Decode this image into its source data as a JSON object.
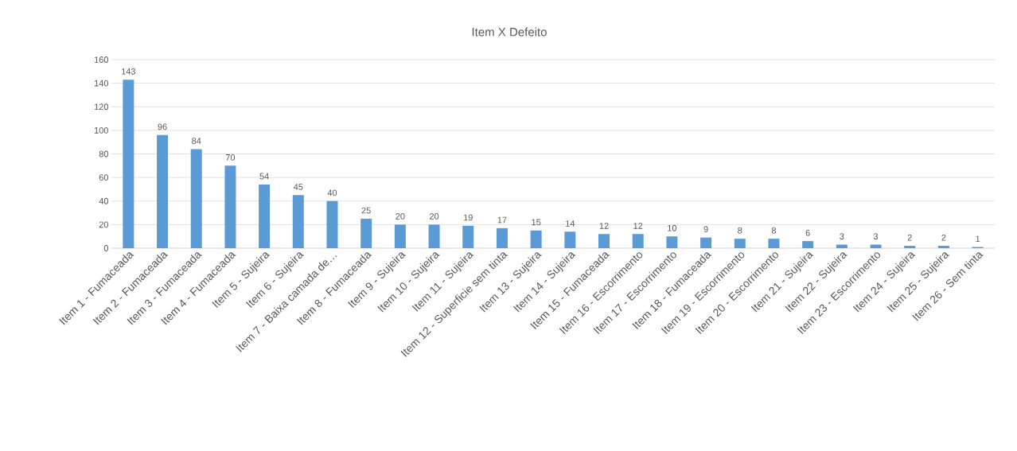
{
  "chart_data": {
    "type": "bar",
    "title": "Item X Defeito",
    "categories": [
      "Item 1 - Fumaceada",
      "Item 2 - Fumaceada",
      "Item 3 - Fumaceada",
      "Item 4 - Fumaceada",
      "Item 5 - Sujeira",
      "Item 6 - Sujeira",
      "Item 7 - Baixa camada de…",
      "Item 8 - Fumaceada",
      "Item 9 - Sujeira",
      "Item 10 - Sujeira",
      "Item 11 - Sujeira",
      "Item 12 - Superficie sem tinta",
      "Item 13 - Sujeira",
      "Item 14 - Sujeira",
      "Item 15 - Fumaceada",
      "Item 16 - Escorrimento",
      "Item 17 - Escorrimento",
      "Item 18 - Fumaceada",
      "Item 19 - Escorrimento",
      "Item 20 - Escorrimento",
      "Item 21 - Sujeira",
      "Item 22 - Sujeira",
      "Item 23 - Escorrimento",
      "Item 24 - Sujeira",
      "Item 25 - Sujeira",
      "Item 26 - Sem tinta"
    ],
    "values": [
      143,
      96,
      84,
      70,
      54,
      45,
      40,
      25,
      20,
      20,
      19,
      17,
      15,
      14,
      12,
      12,
      10,
      9,
      8,
      8,
      6,
      3,
      3,
      2,
      2,
      1
    ],
    "color": "#5b9bd5",
    "ylim": [
      0,
      160
    ],
    "yticks": [
      0,
      20,
      40,
      60,
      80,
      100,
      120,
      140,
      160
    ],
    "grid": "y",
    "data_labels": true
  }
}
